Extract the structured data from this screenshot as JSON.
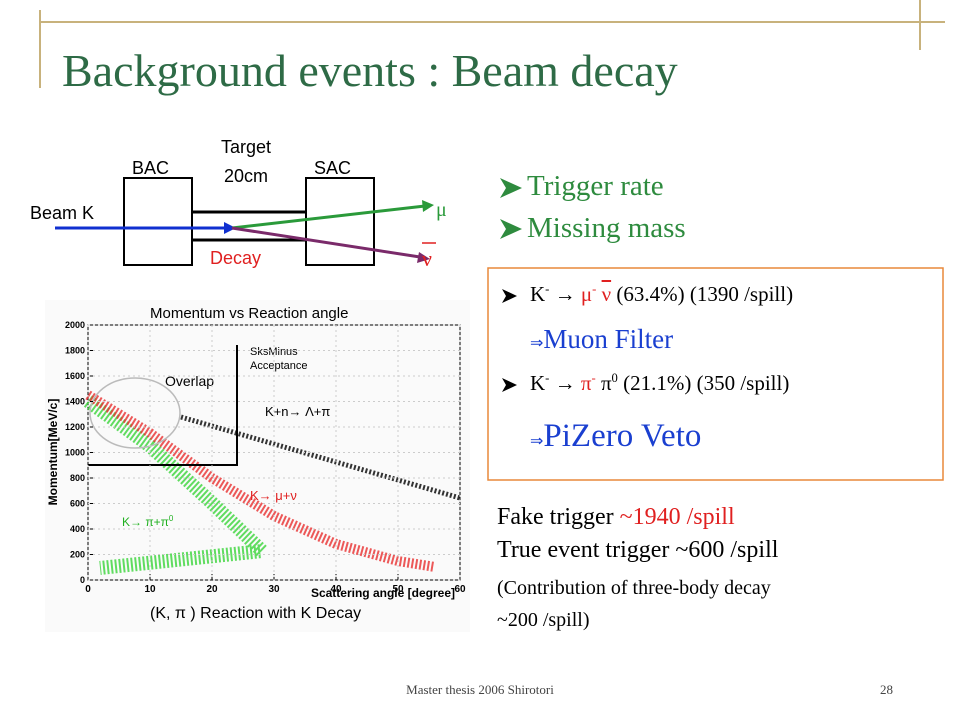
{
  "header": {
    "title": "Background events : Beam decay"
  },
  "diagram": {
    "beam": "Beam K",
    "bac": "BAC",
    "target": "Target",
    "target_length": "20cm",
    "sac": "SAC",
    "decay": "Decay",
    "muon": "μ",
    "neutrino": "ν"
  },
  "bullets": [
    "Trigger rate",
    "Missing mass"
  ],
  "decay_box": {
    "modes": [
      {
        "kaon": "K",
        "kaon_charge": "-",
        "arrow": "→",
        "product1": "μ",
        "product1_charge": "-",
        "product2": "ν",
        "rest": "(63.4%) (1390 /spill)",
        "result_arrow": "⇒",
        "result": "Muon Filter"
      },
      {
        "kaon": "K",
        "kaon_charge": "-",
        "arrow": "→",
        "product1": "π",
        "product1_charge": "-",
        "product2": "π",
        "product2_charge": "0",
        "rest": "(21.1%) (350 /spill)",
        "result_arrow": "⇒",
        "result": "PiZero Veto"
      }
    ]
  },
  "plot": {
    "title": "Momentum vs Reaction angle",
    "ylabel": "Momentum[MeV/c]",
    "xlabel": "Scattering angle [degree]",
    "caption": "(K, π ) Reaction with K Decay",
    "xlim": [
      0,
      60
    ],
    "xticks": [
      0,
      10,
      20,
      30,
      40,
      50,
      60
    ],
    "ylim": [
      0,
      2000
    ],
    "yticks": [
      0,
      200,
      400,
      600,
      800,
      1000,
      1200,
      1400,
      1600,
      1800,
      2000
    ],
    "annotations": {
      "acceptance": [
        "SksMinus",
        "Acceptance"
      ],
      "overlap": "Overlap",
      "lambda": "K+n→ Λ+π",
      "mu": "K→ μ+ν",
      "pi": "K→ π+π",
      "pi_sup": "0"
    }
  },
  "summary": {
    "fake_label": "Fake trigger",
    "fake_value": "~1940 /spill",
    "true": "True event trigger ~600 /spill",
    "note1": "(Contribution of three-body decay",
    "note2": "~200 /spill)"
  },
  "footer": {
    "text": "Master thesis 2006 Shirotori",
    "page": "28"
  }
}
